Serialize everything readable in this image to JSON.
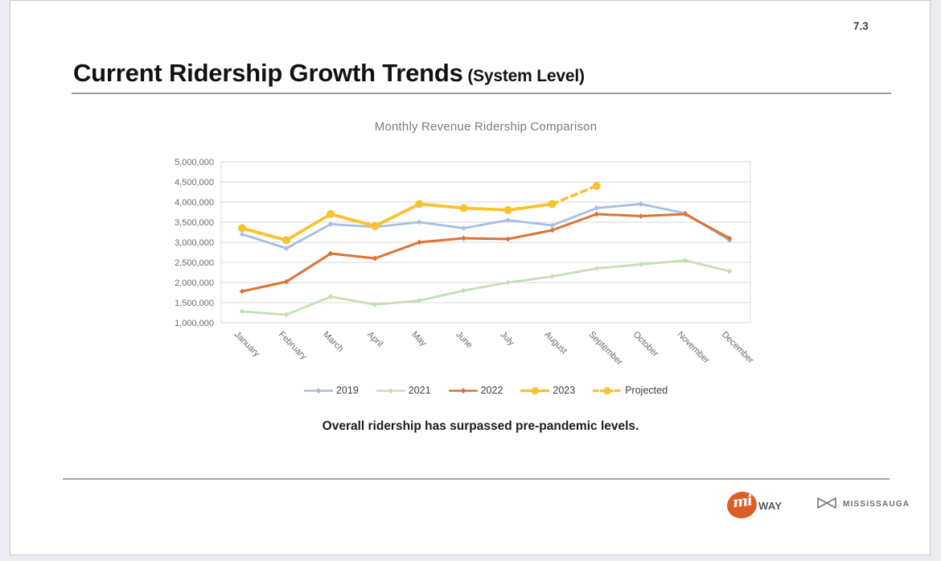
{
  "page": {
    "number": "7.3"
  },
  "header": {
    "title": "Current Ridership Growth Trends",
    "subtitle": " (System Level)"
  },
  "caption": "Overall ridership has surpassed pre-pandemic levels.",
  "footer": {
    "miway": {
      "script": "mi",
      "suffix": "WAY"
    },
    "city": {
      "name": "MISSISSAUGA"
    }
  },
  "chart_data": {
    "type": "line",
    "title": "Monthly Revenue Ridership Comparison",
    "categories": [
      "January",
      "February",
      "March",
      "April",
      "May",
      "June",
      "July",
      "August",
      "September",
      "October",
      "November",
      "December"
    ],
    "series": [
      {
        "name": "2019",
        "color": "#A6BEE3",
        "marker": "diamond-small",
        "dashed": false,
        "width": 2.8,
        "values": [
          3200000,
          2850000,
          3450000,
          3380000,
          3500000,
          3350000,
          3550000,
          3420000,
          3850000,
          3950000,
          3720000,
          3050000
        ]
      },
      {
        "name": "2021",
        "color": "#C5DFB3",
        "marker": "diamond-small",
        "dashed": false,
        "width": 2.8,
        "values": [
          1280000,
          1200000,
          1650000,
          1450000,
          1550000,
          1800000,
          2000000,
          2150000,
          2350000,
          2450000,
          2550000,
          2280000
        ]
      },
      {
        "name": "2022",
        "color": "#DC7433",
        "marker": "diamond-small",
        "dashed": false,
        "width": 3,
        "values": [
          1780000,
          2020000,
          2720000,
          2600000,
          3000000,
          3100000,
          3080000,
          3300000,
          3700000,
          3650000,
          3700000,
          3100000
        ]
      },
      {
        "name": "2023",
        "color": "#FBC12E",
        "marker": "circle-large",
        "dashed": false,
        "width": 3.8,
        "values": [
          3350000,
          3050000,
          3700000,
          3400000,
          3950000,
          3850000,
          3800000,
          3950000,
          null,
          null,
          null,
          null
        ]
      },
      {
        "name": "Projected",
        "color": "#FBC12E",
        "marker": "circle-large",
        "dashed": true,
        "width": 3.6,
        "values": [
          null,
          null,
          null,
          null,
          null,
          null,
          null,
          3950000,
          4400000,
          null,
          null,
          null
        ]
      }
    ],
    "ylim": [
      1000000,
      5000000
    ],
    "ytick_step": 500000,
    "grid": true,
    "legend_position": "bottom",
    "axis_color": "#D9D9D9",
    "tick_label_color": "#6a6a6a"
  }
}
